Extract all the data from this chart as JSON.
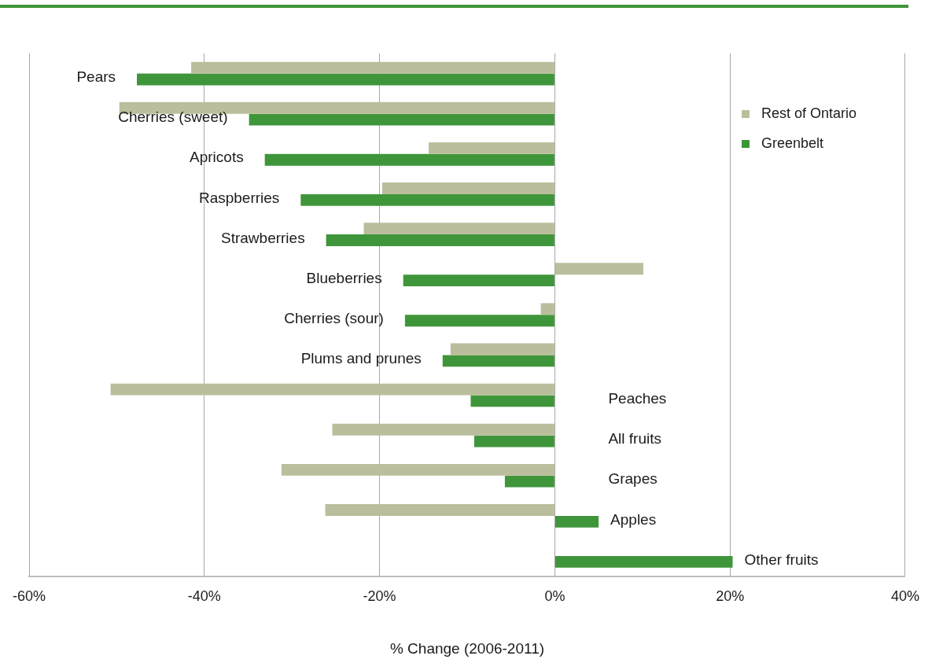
{
  "chart_data": {
    "type": "bar",
    "orientation": "horizontal",
    "xlabel": "% Change (2006-2011)",
    "categories": [
      "Pears",
      "Cherries (sweet)",
      "Apricots",
      "Raspberries",
      "Strawberries",
      "Blueberries",
      "Cherries (sour)",
      "Plums and prunes",
      "Peaches",
      "All fruits",
      "Grapes",
      "Apples",
      "Other fruits"
    ],
    "series": [
      {
        "name": "Rest of Ontario",
        "color": "#bbbe9c",
        "values": [
          -41.5,
          -49.7,
          -14.4,
          -19.7,
          -21.8,
          10.1,
          -1.6,
          -11.9,
          -50.7,
          -25.4,
          -31.2,
          -26.2,
          null
        ]
      },
      {
        "name": "Greenbelt",
        "color": "#3f963a",
        "values": [
          -47.7,
          -34.9,
          -33.1,
          -29.0,
          -26.1,
          -17.3,
          -17.1,
          -12.8,
          -9.6,
          -9.2,
          -5.7,
          5.0,
          20.3
        ]
      }
    ],
    "xlim": [
      -60,
      40
    ],
    "xticks": [
      {
        "value": -60,
        "label": "-60%"
      },
      {
        "value": -40,
        "label": "-40%"
      },
      {
        "value": -20,
        "label": "-20%"
      },
      {
        "value": 0,
        "label": "0%"
      },
      {
        "value": 20,
        "label": "20%"
      },
      {
        "value": 40,
        "label": "40%"
      }
    ],
    "grid": "x",
    "legend": "top right"
  }
}
